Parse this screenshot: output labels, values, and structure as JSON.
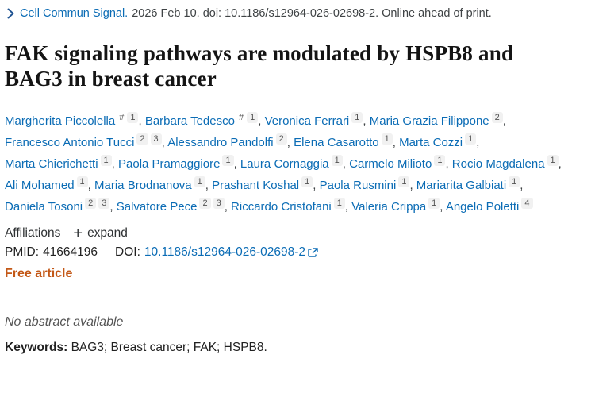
{
  "header": {
    "journal_link": "Cell Commun Signal.",
    "citation_rest": "2026 Feb 10. doi: 10.1186/s12964-026-02698-2. Online ahead of print.",
    "chevron_icon": "chevron-right"
  },
  "title": "FAK signaling pathways are modulated by HSPB8 and BAG3 in breast cancer",
  "authors": [
    {
      "name": "Margherita Piccolella",
      "sups": [
        "#",
        "1"
      ]
    },
    {
      "name": "Barbara Tedesco",
      "sups": [
        "#",
        "1"
      ]
    },
    {
      "name": "Veronica Ferrari",
      "sups": [
        "1"
      ]
    },
    {
      "name": "Maria Grazia Filippone",
      "sups": [
        "2"
      ]
    },
    {
      "name": "Francesco Antonio Tucci",
      "sups": [
        "2",
        "3"
      ]
    },
    {
      "name": "Alessandro Pandolfi",
      "sups": [
        "2"
      ]
    },
    {
      "name": "Elena Casarotto",
      "sups": [
        "1"
      ]
    },
    {
      "name": "Marta Cozzi",
      "sups": [
        "1"
      ]
    },
    {
      "name": "Marta Chierichetti",
      "sups": [
        "1"
      ]
    },
    {
      "name": "Paola Pramaggiore",
      "sups": [
        "1"
      ]
    },
    {
      "name": "Laura Cornaggia",
      "sups": [
        "1"
      ]
    },
    {
      "name": "Carmelo Milioto",
      "sups": [
        "1"
      ]
    },
    {
      "name": "Rocio Magdalena",
      "sups": [
        "1"
      ]
    },
    {
      "name": "Ali Mohamed",
      "sups": [
        "1"
      ]
    },
    {
      "name": "Maria Brodnanova",
      "sups": [
        "1"
      ]
    },
    {
      "name": "Prashant Koshal",
      "sups": [
        "1"
      ]
    },
    {
      "name": "Paola Rusmini",
      "sups": [
        "1"
      ]
    },
    {
      "name": "Mariarita Galbiati",
      "sups": [
        "1"
      ]
    },
    {
      "name": "Daniela Tosoni",
      "sups": [
        "2",
        "3"
      ]
    },
    {
      "name": "Salvatore Pece",
      "sups": [
        "2",
        "3"
      ]
    },
    {
      "name": "Riccardo Cristofani",
      "sups": [
        "1"
      ]
    },
    {
      "name": "Valeria Crippa",
      "sups": [
        "1"
      ]
    },
    {
      "name": "Angelo Poletti",
      "sups": [
        "4"
      ]
    }
  ],
  "affiliations": {
    "label": "Affiliations",
    "plus_icon": "+",
    "expand_label": "expand"
  },
  "identifiers": {
    "pmid_label": "PMID:",
    "pmid_value": "41664196",
    "doi_label": "DOI:",
    "doi_value": "10.1186/s12964-026-02698-2",
    "external_link_icon": "external-link"
  },
  "free_article_label": "Free article",
  "abstract_note": "No abstract available",
  "keywords": {
    "label": "Keywords:",
    "value": "BAG3; Breast cancer; FAK; HSPB8."
  },
  "colors": {
    "link": "#0b6cb5",
    "chevron": "#205493",
    "text": "#212121",
    "free": "#c35817",
    "sup-bg": "#f1f1f1",
    "abstract-gray": "#555555"
  }
}
